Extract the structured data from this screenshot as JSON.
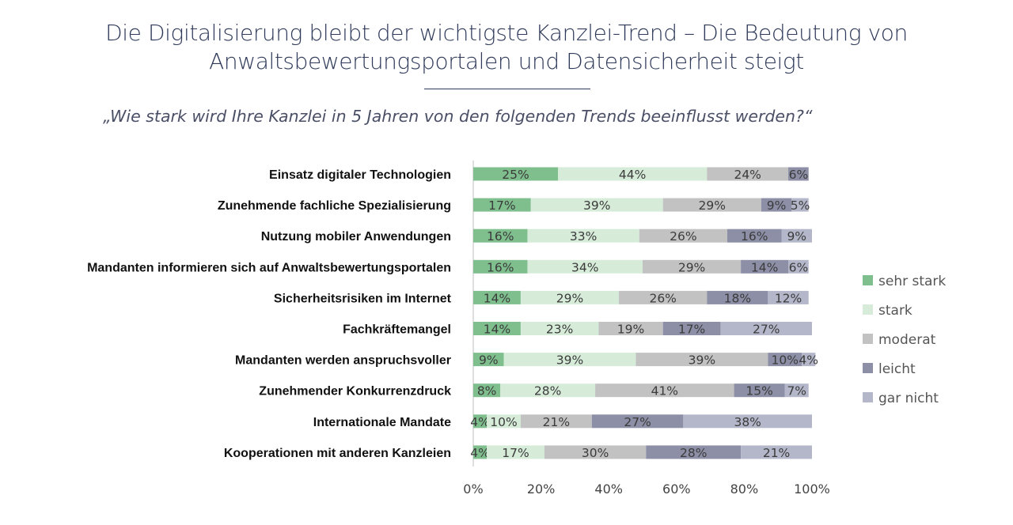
{
  "header": {
    "title_line1": "Die Digitalisierung bleibt der wichtigste Kanzlei-Trend – Die Bedeutung von",
    "title_line2": "Anwaltsbewertungsportalen und Datensicherheit steigt",
    "question": "„Wie stark wird Ihre Kanzlei in 5 Jahren von den folgenden Trends beeinflusst werden?“"
  },
  "chart_data": {
    "type": "bar",
    "orientation": "horizontal",
    "stacked": true,
    "categories": [
      "Einsatz digitaler Technologien",
      "Zunehmende fachliche Spezialisierung",
      "Nutzung mobiler Anwendungen",
      "Mandanten informieren sich auf Anwaltsbewertungsportalen",
      "Sicherheitsrisiken im Internet",
      "Fachkräftemangel",
      "Mandanten werden anspruchsvoller",
      "Zunehmender Konkurrenzdruck",
      "Internationale Mandate",
      "Kooperationen mit anderen Kanzleien"
    ],
    "series": [
      {
        "name": "sehr stark",
        "color": "#7fbf8e",
        "values": [
          25,
          17,
          16,
          16,
          14,
          14,
          9,
          8,
          4,
          4
        ]
      },
      {
        "name": "stark",
        "color": "#d6ecd9",
        "values": [
          44,
          39,
          33,
          34,
          29,
          23,
          39,
          28,
          10,
          17
        ]
      },
      {
        "name": "moderat",
        "color": "#c2c2c2",
        "values": [
          24,
          29,
          26,
          29,
          26,
          19,
          39,
          41,
          21,
          30
        ]
      },
      {
        "name": "leicht",
        "color": "#8c8fa6",
        "values": [
          6,
          9,
          16,
          14,
          18,
          17,
          10,
          15,
          27,
          28
        ]
      },
      {
        "name": "gar nicht",
        "color": "#b4b7c9",
        "values": [
          0,
          5,
          9,
          6,
          12,
          27,
          4,
          7,
          38,
          21
        ]
      }
    ],
    "xlim": [
      0,
      100
    ],
    "xticks": [
      "0%",
      "20%",
      "40%",
      "60%",
      "80%",
      "100%"
    ],
    "value_suffix": "%",
    "legend_position": "right",
    "grid": false
  }
}
